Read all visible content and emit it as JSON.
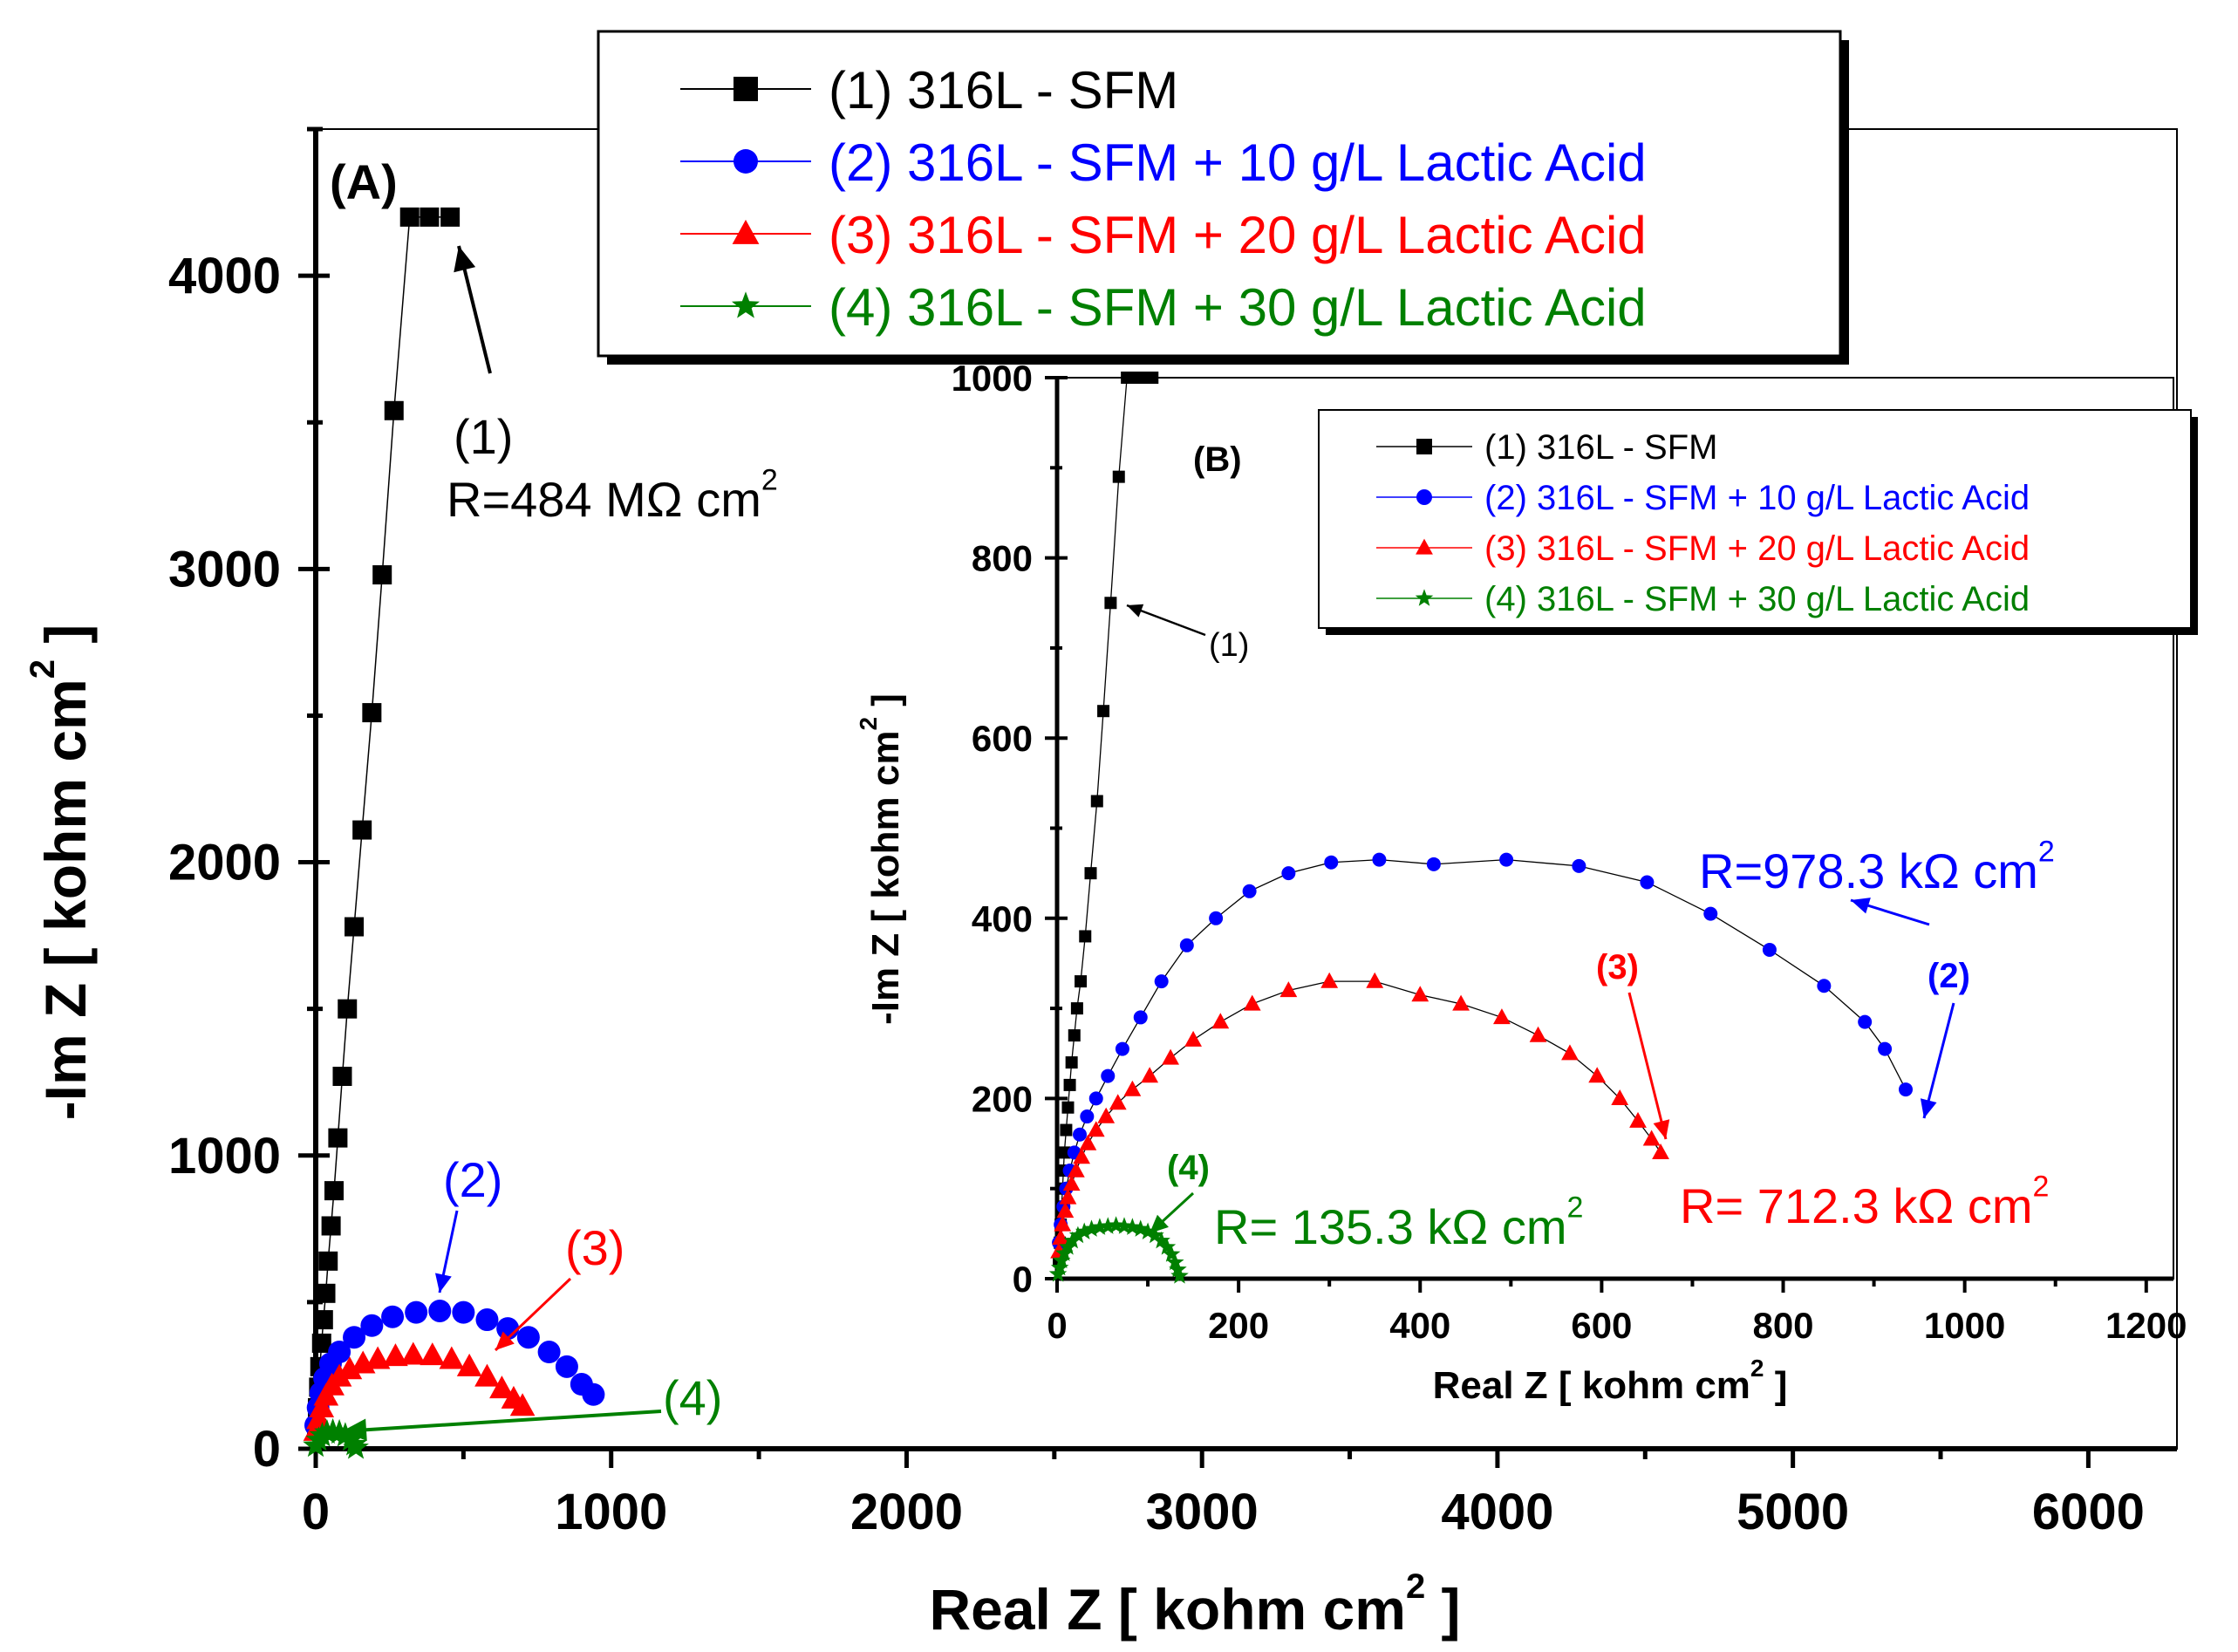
{
  "chart_data": [
    {
      "panel": "A",
      "type": "scatter",
      "panel_label": "(A)",
      "xlabel": "Real Z [ kohm cm",
      "xlabel_sup": "2",
      "xlabel_end": " ]",
      "ylabel": "-Im Z [ kohm cm",
      "ylabel_sup": "2",
      "ylabel_end": " ]",
      "xlim": [
        0,
        6300
      ],
      "ylim": [
        0,
        4500
      ],
      "xticks": [
        0,
        1000,
        2000,
        3000,
        4000,
        5000,
        6000
      ],
      "yticks": [
        0,
        1000,
        2000,
        3000,
        4000
      ],
      "series": [
        {
          "id": 1,
          "name": "(1) 316L - SFM",
          "color": "#000000",
          "marker": "square",
          "x": [
            3,
            6,
            10,
            14,
            20,
            26,
            34,
            42,
            52,
            62,
            75,
            90,
            107,
            130,
            157,
            190,
            225,
            265,
            318,
            385,
            455
          ],
          "y": [
            70,
            140,
            210,
            280,
            360,
            440,
            530,
            640,
            760,
            880,
            1060,
            1270,
            1500,
            1780,
            2110,
            2510,
            2980,
            3540,
            4200,
            4200,
            4200
          ]
        },
        {
          "id": 2,
          "name": "(2) 316L - SFM + 10 g/L Lactic Acid",
          "color": "#0000ff",
          "marker": "circle",
          "x": [
            0,
            8,
            17,
            30,
            50,
            80,
            130,
            190,
            260,
            340,
            420,
            500,
            580,
            650,
            720,
            790,
            850,
            900,
            940
          ],
          "y": [
            80,
            140,
            190,
            240,
            290,
            330,
            380,
            420,
            450,
            465,
            470,
            465,
            440,
            410,
            380,
            330,
            280,
            220,
            185
          ]
        },
        {
          "id": 3,
          "name": "(3) 316L - SFM + 20 g/L Lactic Acid",
          "color": "#ff0000",
          "marker": "triangle",
          "x": [
            0,
            10,
            20,
            35,
            55,
            80,
            115,
            160,
            210,
            270,
            330,
            395,
            460,
            520,
            580,
            630,
            670,
            700
          ],
          "y": [
            60,
            100,
            140,
            180,
            215,
            245,
            270,
            290,
            305,
            315,
            320,
            318,
            305,
            280,
            245,
            205,
            170,
            145
          ]
        },
        {
          "id": 4,
          "name": "(4) 316L - SFM + 30 g/L Lactic Acid",
          "color": "#008000",
          "marker": "star",
          "x": [
            0,
            10,
            22,
            38,
            58,
            80,
            100,
            118,
            130,
            136
          ],
          "y": [
            10,
            30,
            45,
            55,
            58,
            55,
            45,
            30,
            15,
            3
          ]
        }
      ],
      "annotations": [
        {
          "id": "a1",
          "text": "(1)",
          "color": "#000000"
        },
        {
          "id": "a1r",
          "text": "R=484 MΩ cm",
          "sup": "2",
          "color": "#000000"
        },
        {
          "id": "a2",
          "text": "(2)",
          "color": "#0000ff"
        },
        {
          "id": "a3",
          "text": "(3)",
          "color": "#ff0000"
        },
        {
          "id": "a4",
          "text": "(4)",
          "color": "#008000"
        }
      ]
    },
    {
      "panel": "B",
      "type": "scatter",
      "panel_label": "(B)",
      "xlabel": "Real Z [ kohm cm",
      "xlabel_sup": "2",
      "xlabel_end": " ]",
      "ylabel": "-Im Z [ kohm cm",
      "ylabel_sup": "2",
      "ylabel_end": " ]",
      "xlim": [
        0,
        1230
      ],
      "ylim": [
        0,
        1000
      ],
      "xticks": [
        0,
        200,
        400,
        600,
        800,
        1000,
        1200
      ],
      "yticks": [
        0,
        200,
        400,
        600,
        800,
        1000
      ],
      "series": [
        {
          "id": 1,
          "name": "(1) 316L - SFM",
          "color": "#000000",
          "marker": "square",
          "x": [
            2,
            3,
            4,
            5,
            6,
            7,
            8,
            10,
            12,
            14,
            16,
            19,
            22,
            26,
            31,
            37,
            44,
            51,
            59,
            68,
            77,
            86,
            95,
            105
          ],
          "y": [
            20,
            40,
            60,
            80,
            100,
            120,
            140,
            165,
            190,
            215,
            240,
            270,
            300,
            330,
            380,
            450,
            530,
            630,
            750,
            890,
            1000,
            1000,
            1000,
            1000
          ]
        },
        {
          "id": 2,
          "name": "(2) 316L - SFM + 10 g/L Lactic Acid",
          "color": "#0000ff",
          "marker": "circle",
          "x": [
            2,
            4,
            7,
            10,
            14,
            19,
            25,
            33,
            43,
            56,
            72,
            92,
            115,
            143,
            175,
            212,
            255,
            302,
            355,
            415,
            495,
            575,
            650,
            720,
            785,
            845,
            890,
            912,
            935
          ],
          "y": [
            40,
            60,
            80,
            100,
            120,
            140,
            160,
            180,
            200,
            225,
            255,
            290,
            330,
            370,
            400,
            430,
            450,
            462,
            465,
            460,
            465,
            458,
            440,
            405,
            365,
            325,
            285,
            255,
            210
          ]
        },
        {
          "id": 3,
          "name": "(3) 316L - SFM + 20 g/L Lactic Acid",
          "color": "#ff0000",
          "marker": "triangle",
          "x": [
            2,
            4,
            6,
            9,
            12,
            16,
            21,
            27,
            34,
            43,
            54,
            67,
            83,
            102,
            125,
            150,
            180,
            215,
            255,
            300,
            350,
            400,
            445,
            490,
            530,
            565,
            595,
            620,
            640,
            655,
            665
          ],
          "y": [
            30,
            45,
            60,
            75,
            90,
            105,
            120,
            135,
            150,
            165,
            180,
            195,
            210,
            225,
            245,
            265,
            285,
            305,
            320,
            330,
            330,
            315,
            305,
            290,
            270,
            250,
            225,
            200,
            175,
            155,
            140
          ]
        },
        {
          "id": 4,
          "name": "(4) 316L - SFM + 30 g/L Lactic Acid",
          "color": "#008000",
          "marker": "star",
          "x": [
            1,
            3,
            5,
            8,
            12,
            17,
            23,
            30,
            38,
            47,
            56,
            65,
            74,
            83,
            92,
            100,
            108,
            115,
            121,
            126,
            130,
            133,
            135
          ],
          "y": [
            5,
            12,
            20,
            28,
            35,
            42,
            48,
            52,
            55,
            57,
            58,
            59,
            58,
            57,
            55,
            52,
            48,
            42,
            35,
            27,
            18,
            10,
            3
          ]
        }
      ],
      "annotations": [
        {
          "id": "b1",
          "text": "(1)",
          "color": "#000000"
        },
        {
          "id": "b2",
          "text": "(2)",
          "color": "#0000ff"
        },
        {
          "id": "b2r",
          "text": "R=978.3 kΩ cm",
          "sup": "2",
          "color": "#0000ff"
        },
        {
          "id": "b3",
          "text": "(3)",
          "color": "#ff0000"
        },
        {
          "id": "b3r",
          "text": "R= 712.3 kΩ cm",
          "sup": "2",
          "color": "#ff0000"
        },
        {
          "id": "b4",
          "text": "(4)",
          "color": "#008000"
        },
        {
          "id": "b4r",
          "text": "R= 135.3 kΩ cm",
          "sup": "2",
          "color": "#008000"
        }
      ]
    }
  ]
}
